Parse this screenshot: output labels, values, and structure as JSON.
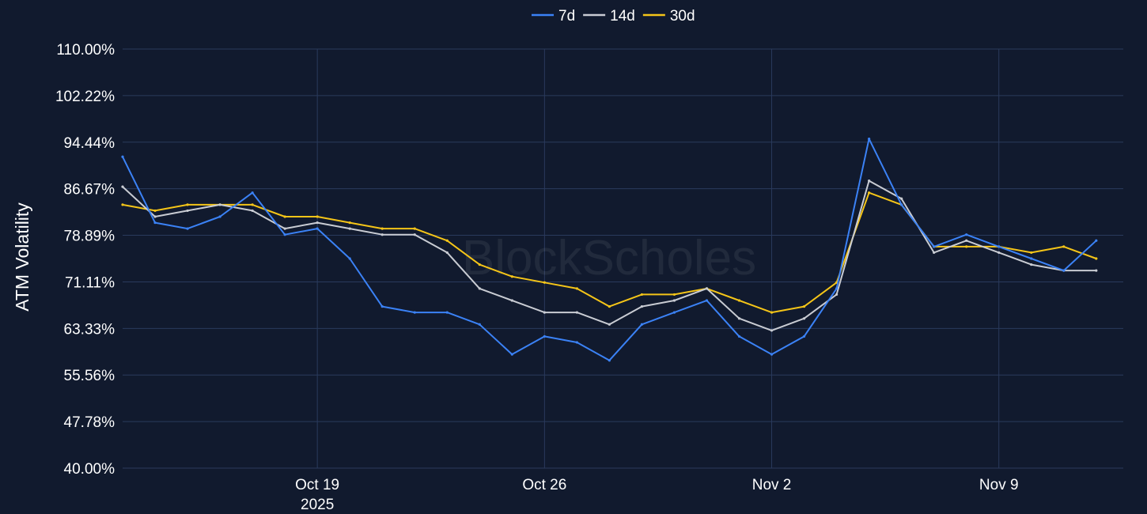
{
  "chart_data": {
    "type": "line",
    "title": "",
    "watermark": "BlockScholes",
    "ylabel": "ATM Volatility",
    "xlabel": "",
    "legend_position": "top-center",
    "grid": true,
    "ylim": [
      40,
      110
    ],
    "y_ticks": [
      "110.00%",
      "102.22%",
      "94.44%",
      "86.67%",
      "78.89%",
      "71.11%",
      "63.33%",
      "55.56%",
      "47.78%",
      "40.00%"
    ],
    "y_tick_values": [
      110,
      102.22,
      94.44,
      86.67,
      78.89,
      71.11,
      63.33,
      55.56,
      47.78,
      40
    ],
    "xlim": [
      "2025-10-13",
      "2025-11-12T20:00"
    ],
    "x_ticks": [
      {
        "value": "2025-10-19",
        "label": "Oct 19",
        "sublabel": "2025"
      },
      {
        "value": "2025-10-26",
        "label": "Oct 26",
        "sublabel": ""
      },
      {
        "value": "2025-11-02",
        "label": "Nov 2",
        "sublabel": ""
      },
      {
        "value": "2025-11-09",
        "label": "Nov 9",
        "sublabel": ""
      }
    ],
    "x": [
      "2025-10-13",
      "2025-10-14",
      "2025-10-15",
      "2025-10-16",
      "2025-10-17",
      "2025-10-18",
      "2025-10-19",
      "2025-10-20",
      "2025-10-21",
      "2025-10-22",
      "2025-10-23",
      "2025-10-24",
      "2025-10-25",
      "2025-10-26",
      "2025-10-27",
      "2025-10-28",
      "2025-10-29",
      "2025-10-30",
      "2025-10-31",
      "2025-11-01",
      "2025-11-02",
      "2025-11-03",
      "2025-11-04",
      "2025-11-05",
      "2025-11-06",
      "2025-11-07",
      "2025-11-08",
      "2025-11-09",
      "2025-11-10",
      "2025-11-11",
      "2025-11-12"
    ],
    "series": [
      {
        "name": "7d",
        "color": "#3b82f6",
        "values": [
          92,
          81,
          80,
          82,
          86,
          79,
          80,
          75,
          67,
          66,
          66,
          64,
          59,
          62,
          61,
          58,
          64,
          66,
          68,
          62,
          59,
          62,
          70,
          95,
          84,
          77,
          79,
          77,
          75,
          73,
          78
        ]
      },
      {
        "name": "14d",
        "color": "#c9ccd3",
        "values": [
          87,
          82,
          83,
          84,
          83,
          80,
          81,
          80,
          79,
          79,
          76,
          70,
          68,
          66,
          66,
          64,
          67,
          68,
          70,
          65,
          63,
          65,
          69,
          88,
          85,
          76,
          78,
          76,
          74,
          73,
          73
        ]
      },
      {
        "name": "30d",
        "color": "#f5c518",
        "values": [
          84,
          83,
          84,
          84,
          84,
          82,
          82,
          81,
          80,
          80,
          78,
          74,
          72,
          71,
          70,
          67,
          69,
          69,
          70,
          68,
          66,
          67,
          71,
          86,
          84,
          77,
          77,
          77,
          76,
          77,
          75
        ]
      }
    ]
  }
}
